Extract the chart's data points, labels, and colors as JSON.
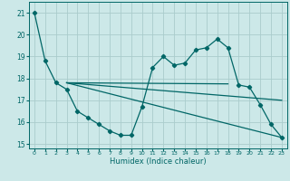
{
  "bg_color": "#cce8e8",
  "grid_color": "#aacccc",
  "line_color": "#006666",
  "xlabel": "Humidex (Indice chaleur)",
  "xlim": [
    -0.5,
    23.5
  ],
  "ylim": [
    14.8,
    21.5
  ],
  "yticks": [
    15,
    16,
    17,
    18,
    19,
    20,
    21
  ],
  "xticks": [
    0,
    1,
    2,
    3,
    4,
    5,
    6,
    7,
    8,
    9,
    10,
    11,
    12,
    13,
    14,
    15,
    16,
    17,
    18,
    19,
    20,
    21,
    22,
    23
  ],
  "main_series": [
    21.0,
    18.8,
    17.8,
    17.5,
    16.5,
    16.2,
    15.9,
    15.6,
    15.4,
    15.4,
    16.7,
    18.5,
    19.0,
    18.6,
    18.7,
    19.3,
    19.4,
    19.8,
    19.4,
    17.7,
    17.6,
    16.8,
    15.9,
    15.3
  ],
  "straight_lines": [
    {
      "x": [
        3,
        23
      ],
      "y": [
        17.8,
        15.3
      ]
    },
    {
      "x": [
        3,
        23
      ],
      "y": [
        17.8,
        17.0
      ]
    },
    {
      "x": [
        3,
        18
      ],
      "y": [
        17.8,
        17.75
      ]
    }
  ]
}
